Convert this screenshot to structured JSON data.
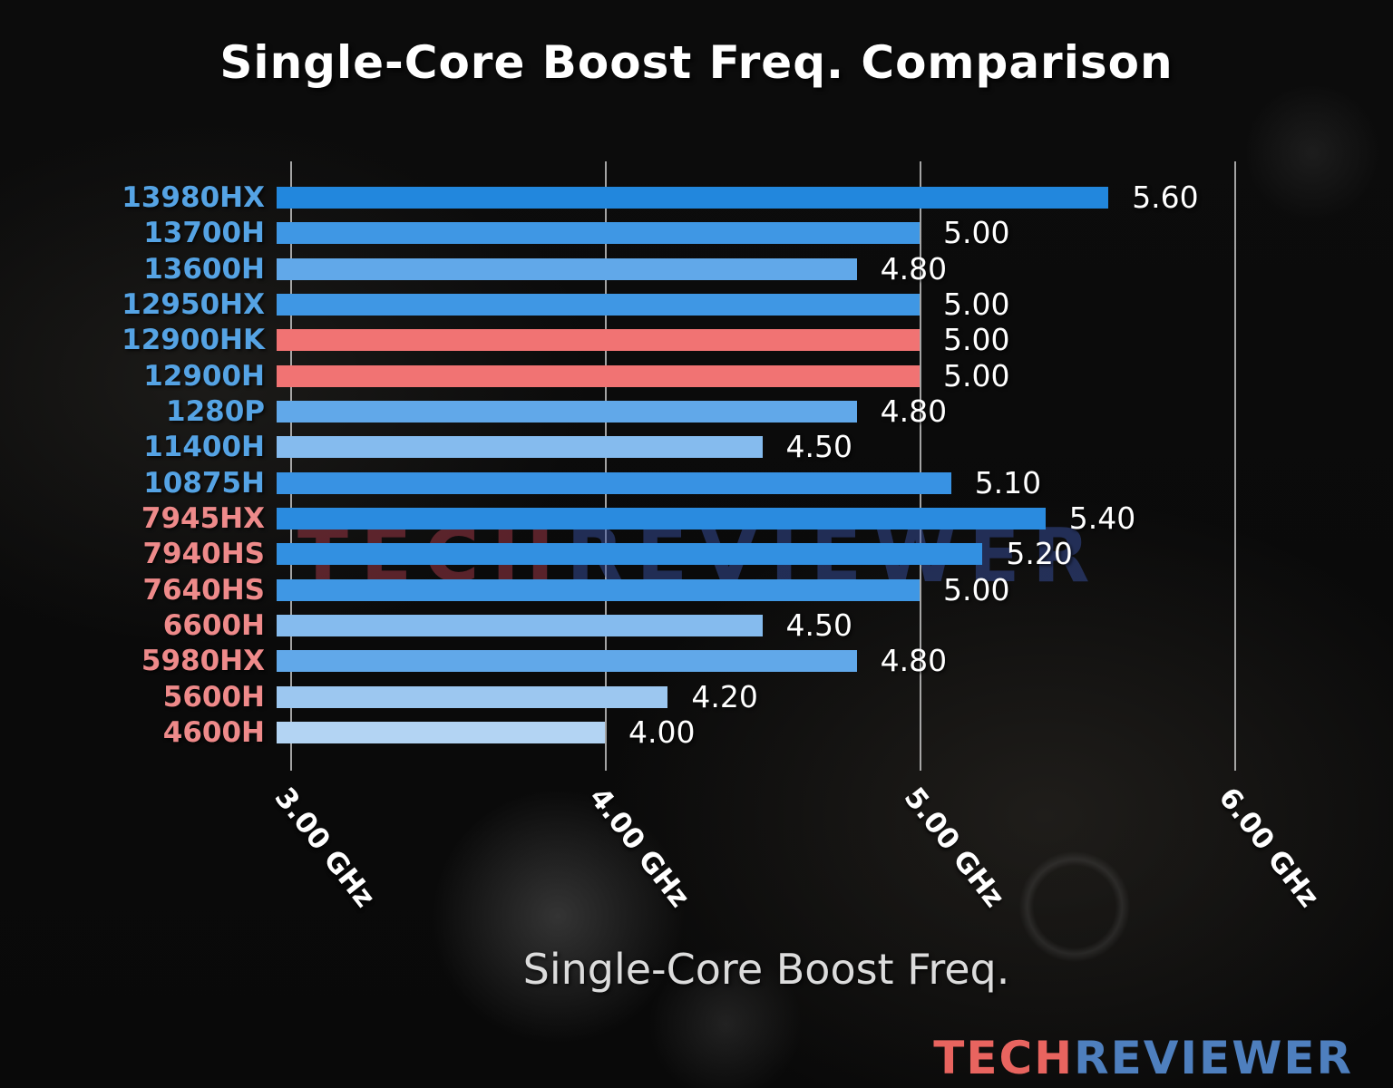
{
  "title": "Single-Core Boost Freq. Comparison",
  "watermark": {
    "part1": "TECH",
    "part2": "REVIEWER"
  },
  "logo": {
    "part1": "TECH",
    "part2": "REVIEWER"
  },
  "colors": {
    "intel_label": "#55a3e4",
    "amd_label": "#ee8a8a",
    "highlight_bar": "#f17373",
    "value_label": "#ffffff",
    "grid": "#d7d7d7",
    "title_text": "#ffffff",
    "axis_title_text": "#dcdcdc"
  },
  "chart_data": {
    "type": "bar",
    "orientation": "horizontal",
    "title": "Single-Core Boost Freq. Comparison",
    "xlabel": "Single-Core Boost Freq.",
    "ylabel": "",
    "xlim": [
      3.0,
      6.5
    ],
    "grid": true,
    "legend": "none",
    "x_ticks": [
      {
        "value": 3.0,
        "label": "3.00 GHz"
      },
      {
        "value": 4.0,
        "label": "4.00 GHz"
      },
      {
        "value": 5.0,
        "label": "5.00 GHz"
      },
      {
        "value": 6.0,
        "label": "6.00 GHz"
      }
    ],
    "categories": [
      "13980HX",
      "13700H",
      "13600H",
      "12950HX",
      "12900HK",
      "12900H",
      "1280P",
      "11400H",
      "10875H",
      "7945HX",
      "7940HS",
      "7640HS",
      "6600H",
      "5980HX",
      "5600H",
      "4600H"
    ],
    "values": [
      5.6,
      5.0,
      4.8,
      5.0,
      5.0,
      5.0,
      4.8,
      4.5,
      5.1,
      5.4,
      5.2,
      5.0,
      4.5,
      4.8,
      4.2,
      4.0
    ],
    "items": [
      {
        "label": "13980HX",
        "value": 5.6,
        "value_label": "5.60",
        "bar_color": "#2287dd",
        "label_color": "#55a3e4",
        "brand": "intel",
        "highlight": false
      },
      {
        "label": "13700H",
        "value": 5.0,
        "value_label": "5.00",
        "bar_color": "#3f97e4",
        "label_color": "#55a3e4",
        "brand": "intel",
        "highlight": false
      },
      {
        "label": "13600H",
        "value": 4.8,
        "value_label": "4.80",
        "bar_color": "#61a8e9",
        "label_color": "#55a3e4",
        "brand": "intel",
        "highlight": false
      },
      {
        "label": "12950HX",
        "value": 5.0,
        "value_label": "5.00",
        "bar_color": "#3f97e4",
        "label_color": "#55a3e4",
        "brand": "intel",
        "highlight": false
      },
      {
        "label": "12900HK",
        "value": 5.0,
        "value_label": "5.00",
        "bar_color": "#f17373",
        "label_color": "#55a3e4",
        "brand": "intel",
        "highlight": true
      },
      {
        "label": "12900H",
        "value": 5.0,
        "value_label": "5.00",
        "bar_color": "#f17373",
        "label_color": "#55a3e4",
        "brand": "intel",
        "highlight": true
      },
      {
        "label": "1280P",
        "value": 4.8,
        "value_label": "4.80",
        "bar_color": "#61a8e9",
        "label_color": "#55a3e4",
        "brand": "intel",
        "highlight": false
      },
      {
        "label": "11400H",
        "value": 4.5,
        "value_label": "4.50",
        "bar_color": "#85bbee",
        "label_color": "#55a3e4",
        "brand": "intel",
        "highlight": false
      },
      {
        "label": "10875H",
        "value": 5.1,
        "value_label": "5.10",
        "bar_color": "#3892e3",
        "label_color": "#55a3e4",
        "brand": "intel",
        "highlight": false
      },
      {
        "label": "7945HX",
        "value": 5.4,
        "value_label": "5.40",
        "bar_color": "#2a8bdf",
        "label_color": "#ee8a8a",
        "brand": "amd",
        "highlight": false
      },
      {
        "label": "7940HS",
        "value": 5.2,
        "value_label": "5.20",
        "bar_color": "#3290e1",
        "label_color": "#ee8a8a",
        "brand": "amd",
        "highlight": false
      },
      {
        "label": "7640HS",
        "value": 5.0,
        "value_label": "5.00",
        "bar_color": "#3f97e4",
        "label_color": "#ee8a8a",
        "brand": "amd",
        "highlight": false
      },
      {
        "label": "6600H",
        "value": 4.5,
        "value_label": "4.50",
        "bar_color": "#85bbee",
        "label_color": "#ee8a8a",
        "brand": "amd",
        "highlight": false
      },
      {
        "label": "5980HX",
        "value": 4.8,
        "value_label": "4.80",
        "bar_color": "#61a8e9",
        "label_color": "#ee8a8a",
        "brand": "amd",
        "highlight": false
      },
      {
        "label": "5600H",
        "value": 4.2,
        "value_label": "4.20",
        "bar_color": "#9cc7f0",
        "label_color": "#ee8a8a",
        "brand": "amd",
        "highlight": false
      },
      {
        "label": "4600H",
        "value": 4.0,
        "value_label": "4.00",
        "bar_color": "#b3d4f3",
        "label_color": "#ee8a8a",
        "brand": "amd",
        "highlight": false
      }
    ]
  }
}
